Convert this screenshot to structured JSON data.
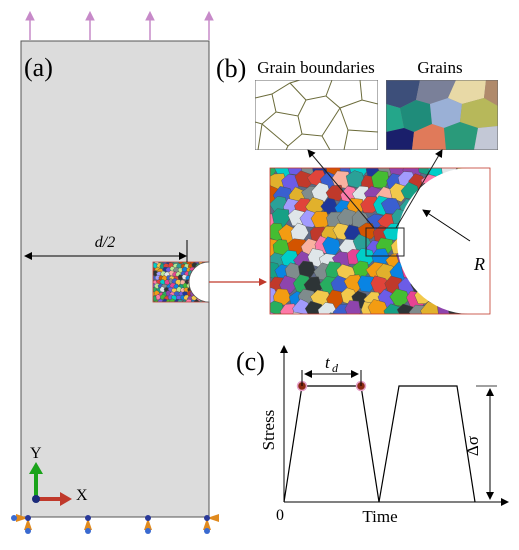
{
  "panels": {
    "a": {
      "label": "(a)",
      "dimension_label": "d/2",
      "axes": {
        "y": "Y",
        "x": "X"
      }
    },
    "b": {
      "label": "(b)",
      "grain_boundaries_title": "Grain boundaries",
      "grains_title": "Grains",
      "radius_label": "R"
    },
    "c": {
      "label": "(c)",
      "origin_label": "0",
      "xlabel": "Time",
      "ylabel": "Stress",
      "dwell_label": "t",
      "dwell_subscript": "d",
      "amplitude_label": "Δσ"
    }
  },
  "colors": {
    "specimen_fill": "#dcdcdc",
    "load_arrow": "#c78ac9",
    "connector": "#c0392b",
    "axis_y": "#1aa31a",
    "axis_x": "#c0392b",
    "dwell_marker": "#8b2a12"
  }
}
